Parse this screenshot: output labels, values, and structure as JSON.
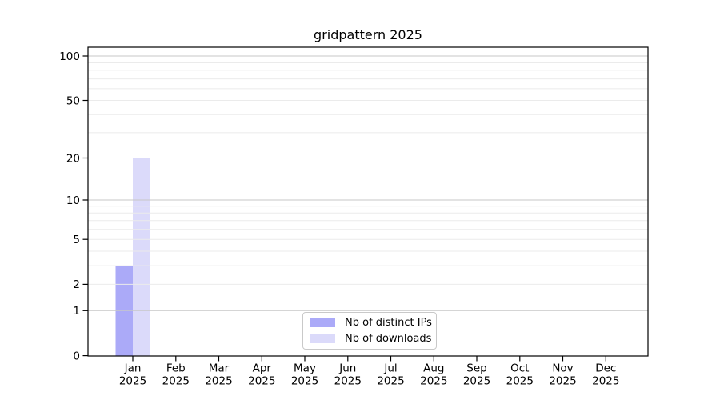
{
  "figure": {
    "background": "#ffffff"
  },
  "chart_data": {
    "type": "bar",
    "title": "gridpattern 2025",
    "categories": [
      "Jan",
      "Feb",
      "Mar",
      "Apr",
      "May",
      "Jun",
      "Jul",
      "Aug",
      "Sep",
      "Oct",
      "Nov",
      "Dec"
    ],
    "year_label": "2025",
    "series": [
      {
        "name": "Nb of distinct IPs",
        "color": "#abaaf8",
        "values": [
          3,
          0,
          0,
          0,
          0,
          0,
          0,
          0,
          0,
          0,
          0,
          0
        ]
      },
      {
        "name": "Nb of downloads",
        "color": "#dbdafa",
        "values": [
          20,
          0,
          0,
          0,
          0,
          0,
          0,
          0,
          0,
          0,
          0,
          0
        ]
      }
    ],
    "yscale": "log1p",
    "ylim": [
      0,
      115
    ],
    "y_major_ticks": [
      0,
      1,
      2,
      5,
      10,
      20,
      50,
      100
    ],
    "y_decade_gridlines": [
      1,
      10,
      100
    ],
    "y_minor_gridlines": [
      2,
      3,
      4,
      5,
      6,
      7,
      8,
      9,
      20,
      30,
      40,
      50,
      60,
      70,
      80,
      90
    ],
    "grid": true,
    "legend_position": "bottom-center"
  },
  "colors": {
    "bar_distinct_ips": "#abaaf8",
    "bar_downloads": "#dbdafa",
    "spine": "#000000",
    "tick_text": "#000000",
    "grid_major": "#c7c7c7",
    "grid_minor": "#ebebeb",
    "legend_border": "#c9c9c9",
    "background": "#ffffff"
  }
}
